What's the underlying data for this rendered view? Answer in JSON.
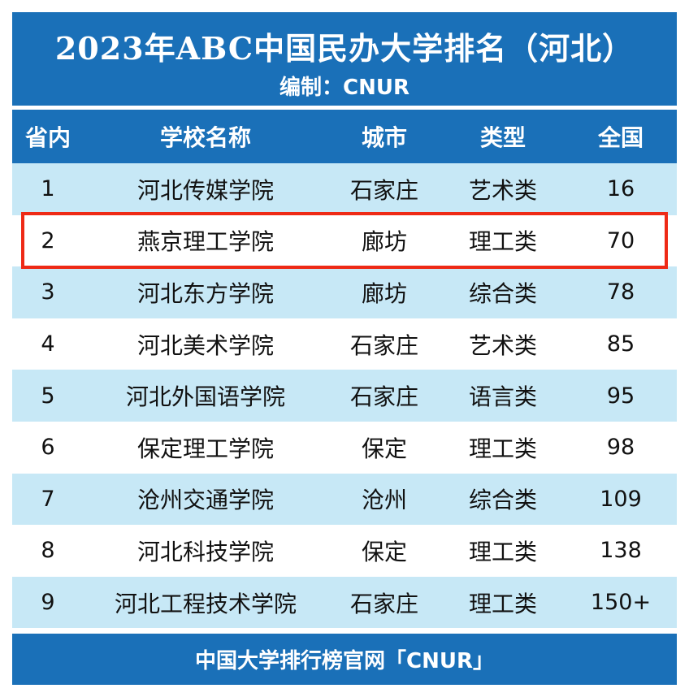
{
  "header": {
    "title": "2023年ABC中国民办大学排名（河北）",
    "subtitle": "编制：CNUR"
  },
  "columns": [
    "省内",
    "学校名称",
    "城市",
    "类型",
    "全国"
  ],
  "rows": [
    {
      "rank": "1",
      "name": "河北传媒学院",
      "city": "石家庄",
      "type": "艺术类",
      "national": "16"
    },
    {
      "rank": "2",
      "name": "燕京理工学院",
      "city": "廊坊",
      "type": "理工类",
      "national": "70"
    },
    {
      "rank": "3",
      "name": "河北东方学院",
      "city": "廊坊",
      "type": "综合类",
      "national": "78"
    },
    {
      "rank": "4",
      "name": "河北美术学院",
      "city": "石家庄",
      "type": "艺术类",
      "national": "85"
    },
    {
      "rank": "5",
      "name": "河北外国语学院",
      "city": "石家庄",
      "type": "语言类",
      "national": "95"
    },
    {
      "rank": "6",
      "name": "保定理工学院",
      "city": "保定",
      "type": "理工类",
      "national": "98"
    },
    {
      "rank": "7",
      "name": "沧州交通学院",
      "city": "沧州",
      "type": "综合类",
      "national": "109"
    },
    {
      "rank": "8",
      "name": "河北科技学院",
      "city": "保定",
      "type": "理工类",
      "national": "138"
    },
    {
      "rank": "9",
      "name": "河北工程技术学院",
      "city": "石家庄",
      "type": "理工类",
      "national": "150+"
    }
  ],
  "highlighted_row": 1,
  "footer": {
    "text": "中国大学排行榜官网「CNUR」"
  },
  "colors": {
    "header_bg": "#1a70b8",
    "row_alt_bg": "#c7e8f6",
    "highlight_border": "#ee2a16"
  }
}
